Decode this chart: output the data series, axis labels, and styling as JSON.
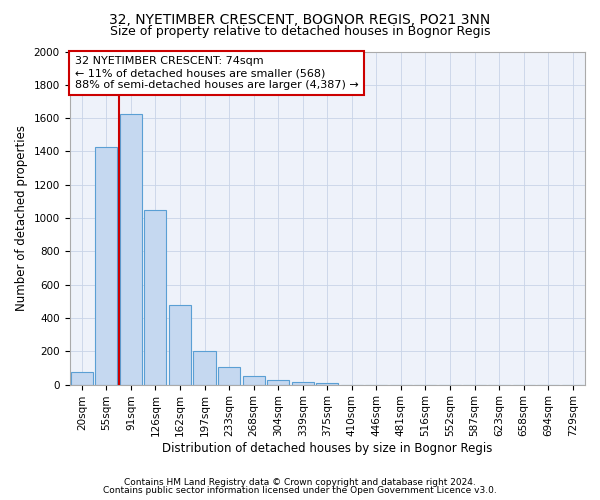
{
  "title1": "32, NYETIMBER CRESCENT, BOGNOR REGIS, PO21 3NN",
  "title2": "Size of property relative to detached houses in Bognor Regis",
  "xlabel": "Distribution of detached houses by size in Bognor Regis",
  "ylabel": "Number of detached properties",
  "categories": [
    "20sqm",
    "55sqm",
    "91sqm",
    "126sqm",
    "162sqm",
    "197sqm",
    "233sqm",
    "268sqm",
    "304sqm",
    "339sqm",
    "375sqm",
    "410sqm",
    "446sqm",
    "481sqm",
    "516sqm",
    "552sqm",
    "587sqm",
    "623sqm",
    "658sqm",
    "694sqm",
    "729sqm"
  ],
  "bar_values": [
    75,
    1425,
    1625,
    1050,
    475,
    200,
    105,
    50,
    25,
    15,
    10,
    0,
    0,
    0,
    0,
    0,
    0,
    0,
    0,
    0,
    0
  ],
  "bar_color": "#c5d8f0",
  "bar_edge_color": "#5a9fd4",
  "vline_x": 1.5,
  "vline_color": "#cc0000",
  "annotation_line1": "32 NYETIMBER CRESCENT: 74sqm",
  "annotation_line2": "← 11% of detached houses are smaller (568)",
  "annotation_line3": "88% of semi-detached houses are larger (4,387) →",
  "annotation_box_color": "#ffffff",
  "annotation_box_edge": "#cc0000",
  "ylim": [
    0,
    2000
  ],
  "yticks": [
    0,
    200,
    400,
    600,
    800,
    1000,
    1200,
    1400,
    1600,
    1800,
    2000
  ],
  "footer1": "Contains HM Land Registry data © Crown copyright and database right 2024.",
  "footer2": "Contains public sector information licensed under the Open Government Licence v3.0.",
  "bg_color": "#ffffff",
  "plot_bg_color": "#eef2fa",
  "grid_color": "#c8d4e8",
  "title_fontsize": 10,
  "subtitle_fontsize": 9,
  "axis_label_fontsize": 8.5,
  "tick_fontsize": 7.5,
  "annotation_fontsize": 8,
  "footer_fontsize": 6.5
}
